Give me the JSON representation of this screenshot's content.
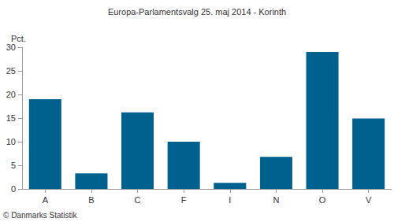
{
  "chart_data": {
    "type": "bar",
    "title": "Europa-Parlamentsvalg 25. maj 2014 - Korinth",
    "y_label": "Pct.",
    "annotation": "© Danmarks Statistik",
    "categories": [
      "A",
      "B",
      "C",
      "F",
      "I",
      "N",
      "O",
      "V"
    ],
    "values": [
      19.0,
      3.3,
      16.2,
      10.0,
      1.3,
      6.8,
      29.0,
      14.9
    ],
    "color": "#00618f",
    "ylim": [
      0,
      30
    ],
    "yticks": [
      0,
      5,
      10,
      15,
      20,
      25,
      30
    ],
    "grid": false
  }
}
